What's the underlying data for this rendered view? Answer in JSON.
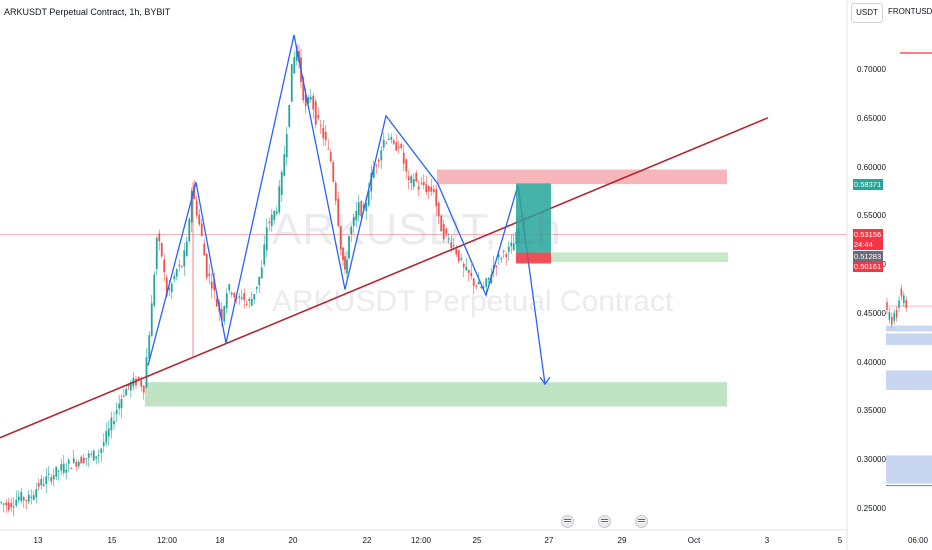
{
  "header": {
    "ticker": "ARKUSDT Perpetual Contract, 1h, BYBIT"
  },
  "watermark": {
    "line1": "ARKUSDT, 1h",
    "line2": "ARKUSDT Perpetual Contract"
  },
  "right_panel": {
    "currency": "USDT",
    "compare_symbol": "FRONTUSDT.P"
  },
  "chart_data": {
    "type": "candlestick",
    "y_axis": {
      "range": [
        0.245,
        0.755
      ],
      "ticks": [
        "0.70000",
        "0.65000",
        "0.60000",
        "0.55000",
        "0.50000",
        "0.45000",
        "0.40000",
        "0.35000",
        "0.30000",
        "0.25000"
      ]
    },
    "x_axis": {
      "ticks": [
        "13",
        "15",
        "12:00",
        "18",
        "20",
        "22",
        "12:00",
        "25",
        "27",
        "29",
        "Oct",
        "3",
        "5",
        "06:00"
      ]
    },
    "price_labels": [
      {
        "value": "0.58371",
        "color": "#26a69a"
      },
      {
        "value": "0.53156",
        "color": "#f23645"
      },
      {
        "value": "24:44",
        "color": "#f23645"
      },
      {
        "value": "0.51283",
        "color": "#6a6d78"
      },
      {
        "value": "0.50161",
        "color": "#f23645"
      }
    ],
    "price_path": [
      [
        0,
        0.257
      ],
      [
        10,
        0.254
      ],
      [
        20,
        0.262
      ],
      [
        30,
        0.26
      ],
      [
        40,
        0.275
      ],
      [
        50,
        0.282
      ],
      [
        60,
        0.29
      ],
      [
        70,
        0.296
      ],
      [
        80,
        0.3
      ],
      [
        90,
        0.304
      ],
      [
        100,
        0.307
      ],
      [
        110,
        0.33
      ],
      [
        118,
        0.353
      ],
      [
        125,
        0.37
      ],
      [
        132,
        0.378
      ],
      [
        140,
        0.382
      ],
      [
        145,
        0.375
      ],
      [
        148,
        0.405
      ],
      [
        153,
        0.458
      ],
      [
        158,
        0.528
      ],
      [
        163,
        0.51
      ],
      [
        168,
        0.47
      ],
      [
        173,
        0.48
      ],
      [
        178,
        0.495
      ],
      [
        183,
        0.5
      ],
      [
        188,
        0.52
      ],
      [
        193,
        0.578
      ],
      [
        198,
        0.555
      ],
      [
        203,
        0.528
      ],
      [
        208,
        0.492
      ],
      [
        213,
        0.482
      ],
      [
        218,
        0.46
      ],
      [
        223,
        0.448
      ],
      [
        228,
        0.474
      ],
      [
        233,
        0.476
      ],
      [
        238,
        0.462
      ],
      [
        243,
        0.47
      ],
      [
        248,
        0.46
      ],
      [
        253,
        0.466
      ],
      [
        258,
        0.48
      ],
      [
        263,
        0.495
      ],
      [
        268,
        0.54
      ],
      [
        273,
        0.548
      ],
      [
        278,
        0.56
      ],
      [
        283,
        0.59
      ],
      [
        288,
        0.64
      ],
      [
        293,
        0.7
      ],
      [
        298,
        0.725
      ],
      [
        302,
        0.69
      ],
      [
        307,
        0.66
      ],
      [
        312,
        0.675
      ],
      [
        317,
        0.65
      ],
      [
        322,
        0.64
      ],
      [
        327,
        0.625
      ],
      [
        332,
        0.607
      ],
      [
        337,
        0.57
      ],
      [
        342,
        0.52
      ],
      [
        346,
        0.49
      ],
      [
        350,
        0.53
      ],
      [
        355,
        0.545
      ],
      [
        360,
        0.56
      ],
      [
        365,
        0.552
      ],
      [
        370,
        0.58
      ],
      [
        375,
        0.6
      ],
      [
        380,
        0.612
      ],
      [
        385,
        0.628
      ],
      [
        390,
        0.632
      ],
      [
        395,
        0.62
      ],
      [
        400,
        0.625
      ],
      [
        405,
        0.605
      ],
      [
        410,
        0.582
      ],
      [
        415,
        0.59
      ],
      [
        420,
        0.58
      ],
      [
        425,
        0.582
      ],
      [
        430,
        0.575
      ],
      [
        435,
        0.578
      ],
      [
        440,
        0.545
      ],
      [
        445,
        0.532
      ],
      [
        450,
        0.526
      ],
      [
        455,
        0.52
      ],
      [
        460,
        0.508
      ],
      [
        465,
        0.495
      ],
      [
        470,
        0.49
      ],
      [
        475,
        0.482
      ],
      [
        480,
        0.478
      ],
      [
        485,
        0.476
      ],
      [
        490,
        0.486
      ],
      [
        495,
        0.5
      ],
      [
        500,
        0.507
      ],
      [
        505,
        0.513
      ],
      [
        510,
        0.515
      ],
      [
        515,
        0.522
      ],
      [
        520,
        0.536
      ]
    ],
    "secondary_series": {
      "name": "FRONTUSDT.P",
      "values": [
        0.458,
        0.448,
        0.443,
        0.447,
        0.45,
        0.46,
        0.472,
        0.465,
        0.46
      ]
    },
    "trendline": {
      "from": [
        0,
        0.323
      ],
      "to": [
        768,
        0.651
      ],
      "color": "#b22833"
    },
    "wave_pattern": [
      [
        148,
        0.397
      ],
      [
        196,
        0.585
      ],
      [
        226,
        0.42
      ],
      [
        294,
        0.736
      ],
      [
        345,
        0.475
      ],
      [
        386,
        0.653
      ],
      [
        438,
        0.583
      ],
      [
        486,
        0.469
      ],
      [
        518,
        0.582
      ],
      [
        545,
        0.378
      ]
    ],
    "zones": [
      {
        "name": "supply",
        "y_top": 0.598,
        "y_bottom": 0.583,
        "color": "#f7b7ba"
      },
      {
        "name": "target",
        "y_top": 0.38,
        "y_bottom": 0.355,
        "color": "#bfe4c3"
      },
      {
        "name": "entry-line",
        "y_top": 0.513,
        "y_bottom": 0.503,
        "color": "#c7e8c9"
      }
    ],
    "position": {
      "take_profit": 0.58371,
      "entry": 0.51283,
      "stop": 0.50161
    }
  }
}
